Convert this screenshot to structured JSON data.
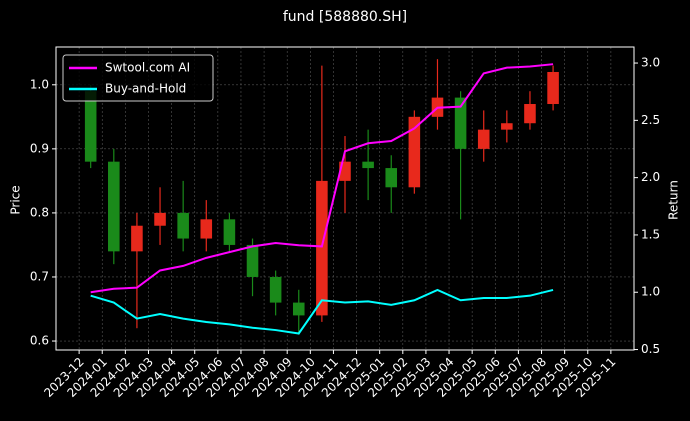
{
  "chart_data": {
    "type": "candlestick",
    "title": "fund [588880.SH]",
    "ylabel": "Price",
    "y2label": "Return",
    "x": [
      "2023-12",
      "2024-01",
      "2024-02",
      "2024-03",
      "2024-04",
      "2024-05",
      "2024-06",
      "2024-07",
      "2024-08",
      "2024-09",
      "2024-10",
      "2024-11",
      "2024-12",
      "2025-01",
      "2025-02",
      "2025-03",
      "2025-04",
      "2025-05",
      "2025-06",
      "2025-07",
      "2025-08"
    ],
    "open": [
      0.99,
      0.88,
      0.74,
      0.78,
      0.8,
      0.76,
      0.79,
      0.75,
      0.7,
      0.66,
      0.64,
      0.85,
      0.88,
      0.87,
      0.84,
      0.95,
      0.98,
      0.9,
      0.93,
      0.94,
      0.97
    ],
    "high": [
      1.0,
      0.9,
      0.8,
      0.84,
      0.85,
      0.82,
      0.8,
      0.76,
      0.71,
      0.68,
      1.03,
      0.92,
      0.93,
      0.89,
      0.96,
      1.04,
      0.99,
      0.96,
      0.96,
      0.99,
      1.03
    ],
    "low": [
      0.87,
      0.72,
      0.62,
      0.75,
      0.74,
      0.74,
      0.74,
      0.67,
      0.64,
      0.61,
      0.63,
      0.8,
      0.82,
      0.8,
      0.83,
      0.93,
      0.79,
      0.88,
      0.91,
      0.93,
      0.96
    ],
    "close": [
      0.88,
      0.74,
      0.78,
      0.8,
      0.76,
      0.79,
      0.75,
      0.7,
      0.66,
      0.64,
      0.85,
      0.88,
      0.87,
      0.84,
      0.95,
      0.98,
      0.9,
      0.93,
      0.94,
      0.97,
      1.02
    ],
    "up_color": "#e8291c",
    "down_color": "#1a8a1a",
    "series": [
      {
        "name": "Swtool.com AI",
        "color": "#ff00ff",
        "axis": "y2",
        "values": [
          1.0,
          1.03,
          1.04,
          1.19,
          1.23,
          1.3,
          1.35,
          1.4,
          1.43,
          1.41,
          1.4,
          2.23,
          2.3,
          2.32,
          2.43,
          2.61,
          2.62,
          2.91,
          2.96,
          2.97,
          2.99
        ]
      },
      {
        "name": "Buy-and-Hold",
        "color": "#00ffff",
        "axis": "y2",
        "values": [
          0.97,
          0.91,
          0.77,
          0.81,
          0.77,
          0.74,
          0.72,
          0.69,
          0.67,
          0.64,
          0.93,
          0.91,
          0.92,
          0.89,
          0.93,
          1.02,
          0.93,
          0.95,
          0.95,
          0.97,
          1.02
        ]
      }
    ],
    "xlim": [
      "2023-11",
      "2025-12"
    ],
    "xticks": [
      "2023-12",
      "2024-01",
      "2024-02",
      "2024-03",
      "2024-04",
      "2024-05",
      "2024-06",
      "2024-07",
      "2024-08",
      "2024-09",
      "2024-10",
      "2024-11",
      "2024-12",
      "2025-01",
      "2025-02",
      "2025-03",
      "2025-04",
      "2025-05",
      "2025-06",
      "2025-07",
      "2025-08",
      "2025-09",
      "2025-10",
      "2025-11"
    ],
    "ylim": [
      0.586,
      1.059
    ],
    "yticks": [
      0.6,
      0.7,
      0.8,
      0.9,
      {
        "value": 1,
        "label": "1.0"
      }
    ],
    "y2lim": [
      0.496,
      3.14
    ],
    "y2ticks": [
      0.5,
      {
        "value": 1,
        "label": "1.0"
      },
      1.5,
      {
        "value": 2,
        "label": "2.0"
      },
      2.5,
      {
        "value": 3,
        "label": "3.0"
      }
    ],
    "grid": true,
    "legend": "upper left"
  }
}
